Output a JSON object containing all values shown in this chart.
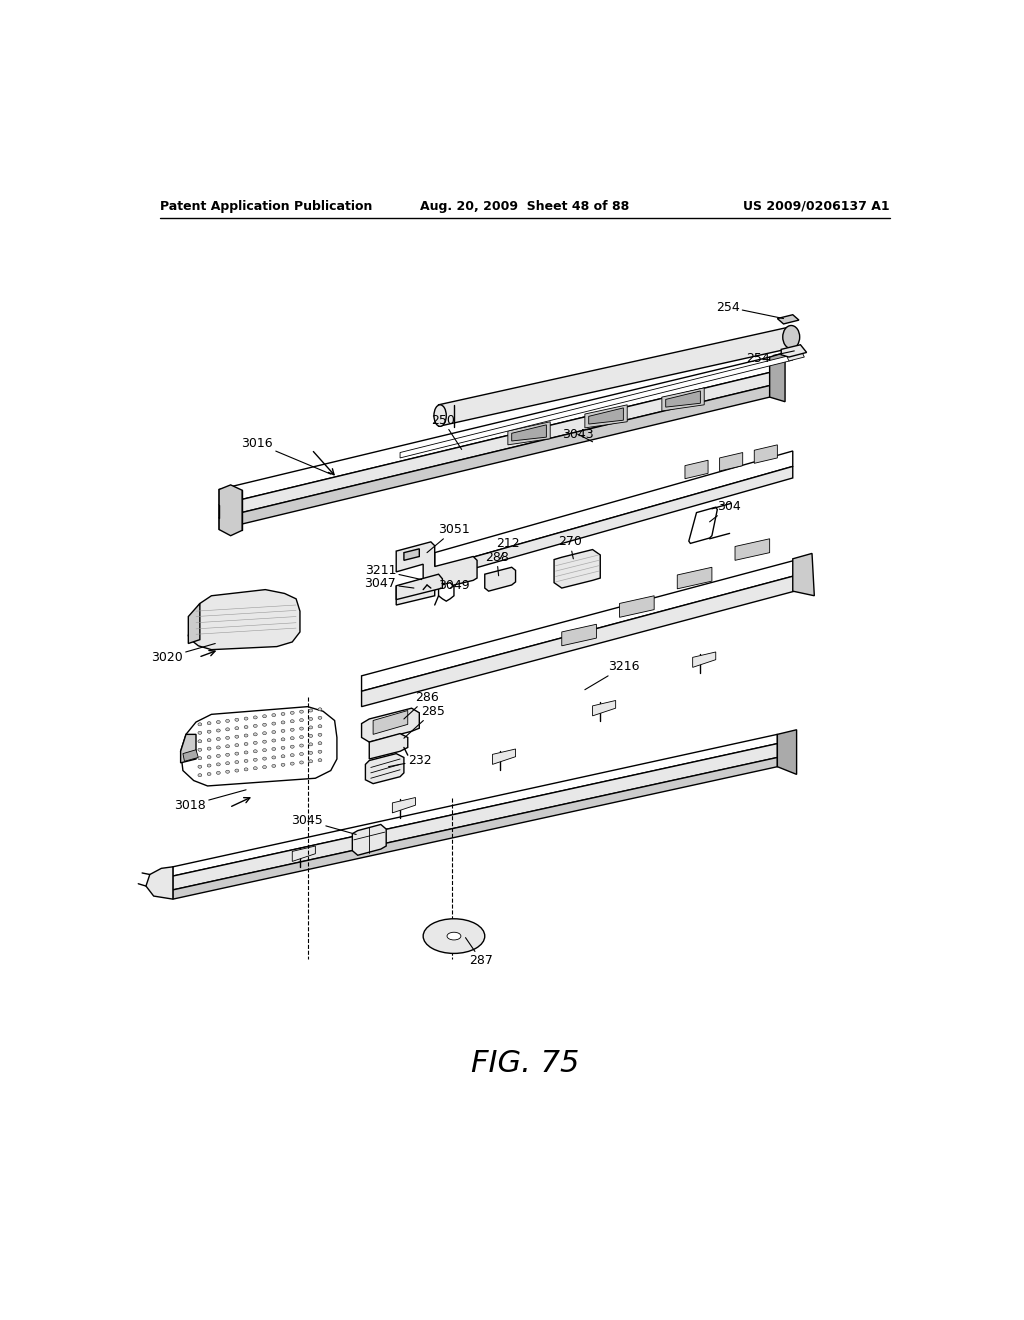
{
  "header_left": "Patent Application Publication",
  "header_center": "Aug. 20, 2009  Sheet 48 of 88",
  "header_right": "US 2009/0206137 A1",
  "background_color": "#ffffff",
  "text_color": "#000000",
  "figure_label": "FIG. 75",
  "lw": 1.0,
  "lw_thin": 0.6,
  "lw_thick": 1.4
}
